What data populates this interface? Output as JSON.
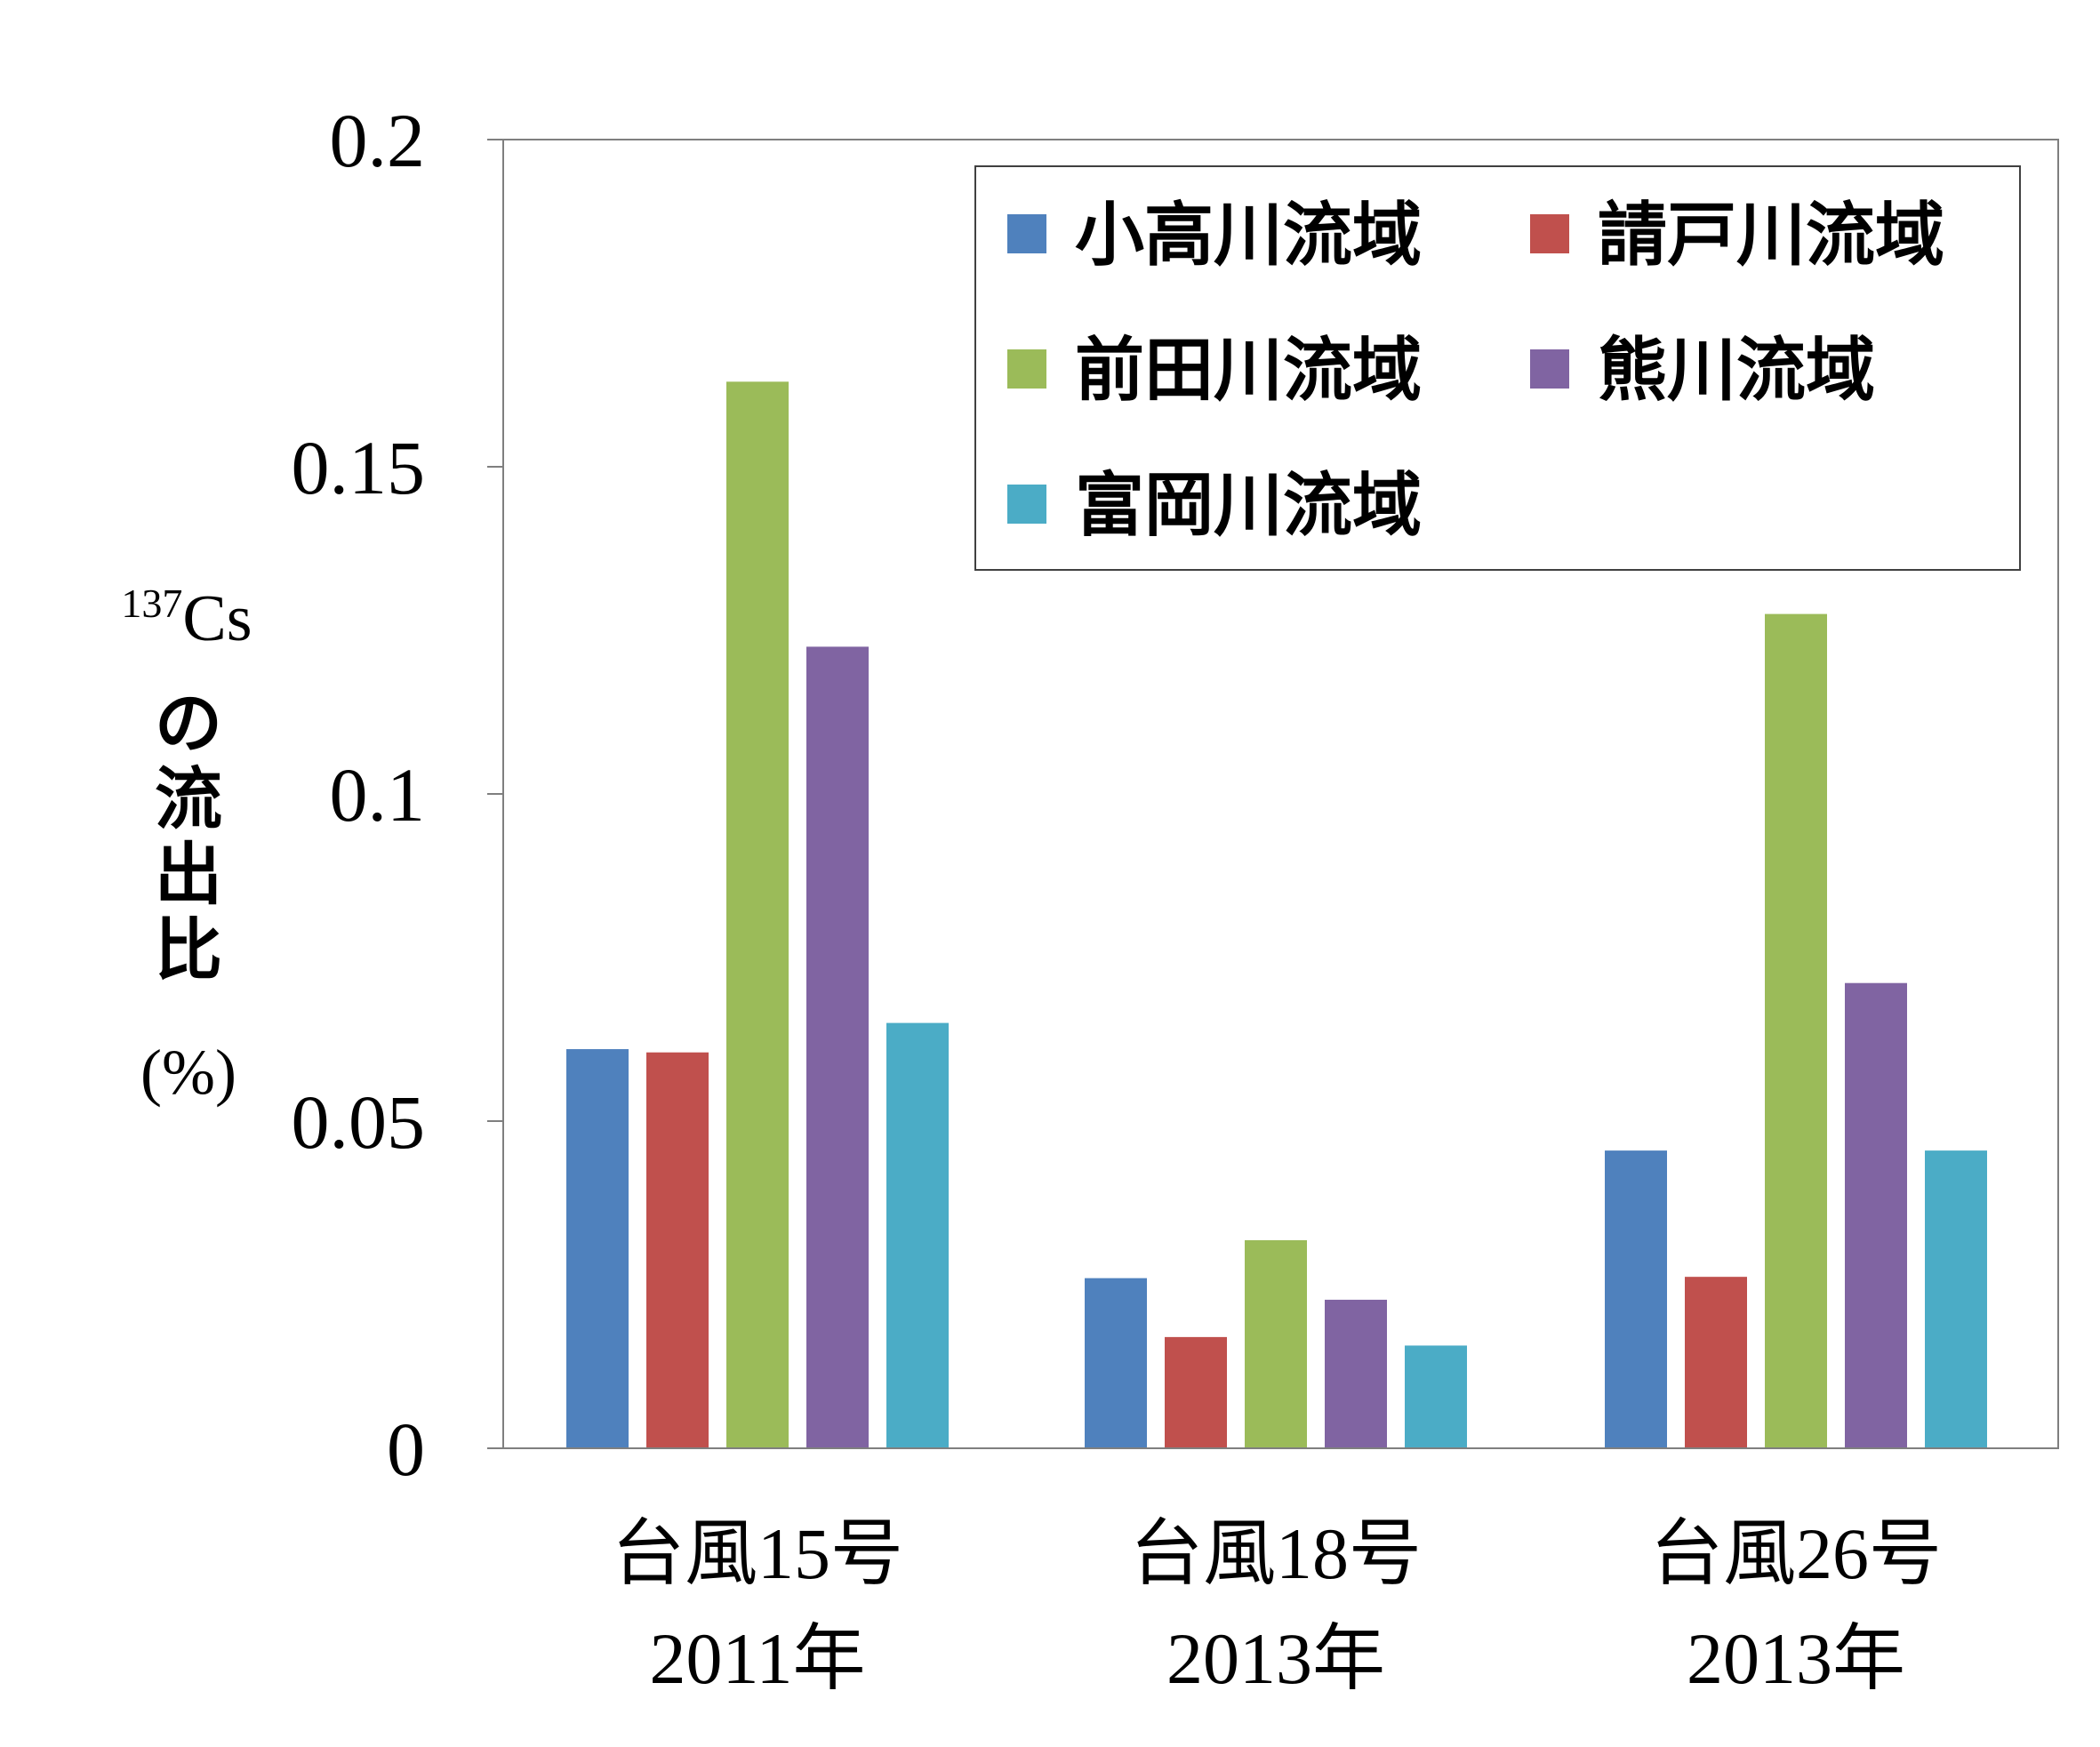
{
  "chart_data": {
    "type": "bar",
    "categories": [
      {
        "line1": "台風15号",
        "line2": "2011年"
      },
      {
        "line1": "台風18号",
        "line2": "2013年"
      },
      {
        "line1": "台風26号",
        "line2": "2013年"
      }
    ],
    "series": [
      {
        "name": "小高川流域",
        "color": "#4F81BD",
        "values": [
          0.061,
          0.026,
          0.0455
        ]
      },
      {
        "name": "請戸川流域",
        "color": "#C0504D",
        "values": [
          0.0605,
          0.017,
          0.0262
        ]
      },
      {
        "name": "前田川流域",
        "color": "#9BBB59",
        "values": [
          0.163,
          0.0318,
          0.1275
        ]
      },
      {
        "name": "熊川流域",
        "color": "#8064A2",
        "values": [
          0.1225,
          0.0227,
          0.0711
        ]
      },
      {
        "name": "富岡川流域",
        "color": "#4BACC6",
        "values": [
          0.065,
          0.0157,
          0.0455
        ]
      }
    ],
    "ylim": [
      0,
      0.2
    ],
    "yticks": [
      "0",
      "0.05",
      "0.1",
      "0.15",
      "0.2"
    ],
    "ylabel": {
      "isotope_superscript": "137",
      "isotope": "Cs",
      "chars": [
        "の",
        "流",
        "出",
        "比"
      ],
      "unit": "(%)"
    },
    "legend_position": "top-right",
    "grid": false
  }
}
